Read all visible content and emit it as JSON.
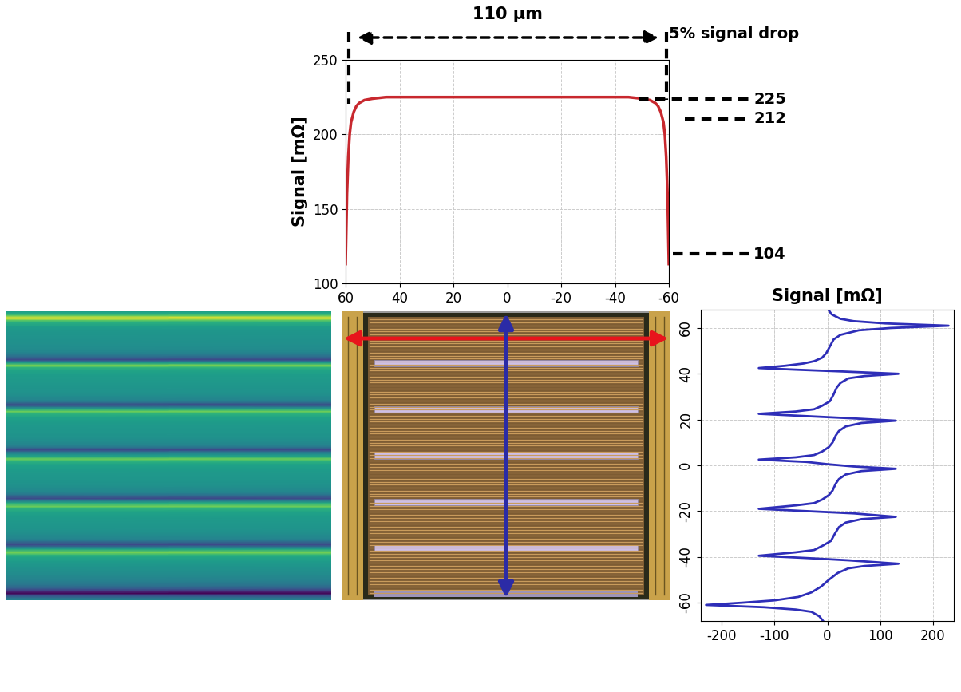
{
  "chart_data": [
    {
      "type": "line",
      "ylabel": "Signal [mΩ]",
      "x": [
        60,
        59.5,
        59,
        58.5,
        58,
        57,
        56,
        55,
        53,
        50,
        45,
        40,
        20,
        0,
        -20,
        -40,
        -45,
        -50,
        -53,
        -55,
        -56,
        -57,
        -58,
        -58.5,
        -59,
        -59.5,
        -60
      ],
      "values": [
        113,
        160,
        185,
        200,
        208,
        215,
        219,
        221,
        223,
        224,
        225,
        225,
        225,
        225,
        225,
        225,
        225,
        224,
        223,
        221,
        219,
        215,
        208,
        200,
        185,
        160,
        113
      ],
      "color": "#c8282e",
      "xlim": [
        60,
        -60
      ],
      "ylim": [
        100,
        250
      ],
      "xticks": [
        60,
        40,
        20,
        0,
        -20,
        -40,
        -60
      ],
      "yticks": [
        100,
        150,
        200,
        250
      ],
      "grid": true,
      "annotations": [
        "110 µm",
        "5% signal drop",
        "225",
        "212",
        "104"
      ]
    },
    {
      "type": "heatmap",
      "color": "viridis",
      "clim": [
        -230,
        230
      ],
      "ylim": [
        -64,
        64
      ],
      "tick_labels": false,
      "y": [
        68,
        66,
        64,
        63,
        62,
        61,
        60,
        59,
        57,
        55,
        52,
        49,
        47,
        45.5,
        44.5,
        43.5,
        42.5,
        41.8,
        41,
        40,
        39,
        38,
        36,
        34,
        31,
        28,
        26,
        24.5,
        23.5,
        22.5,
        21.5,
        20.5,
        19.5,
        18.5,
        17,
        15,
        13,
        10,
        8,
        6,
        4.5,
        3.5,
        2.5,
        1.5,
        0.5,
        -0.5,
        -1.5,
        -2.5,
        -4,
        -6,
        -8,
        -11,
        -13,
        -15,
        -16.5,
        -17.5,
        -19,
        -20,
        -21,
        -22.5,
        -23.5,
        -25,
        -27,
        -30,
        -33,
        -35,
        -37,
        -38,
        -39.5,
        -40.5,
        -41.5,
        -43,
        -44,
        -45,
        -47,
        -50,
        -53,
        -55.5,
        -57.5,
        -59,
        -60,
        -61,
        -62,
        -63,
        -64,
        -66,
        -68
      ],
      "cells": [
        [
          2
        ],
        [
          8
        ],
        [
          25
        ],
        [
          50
        ],
        [
          110
        ],
        [
          230
        ],
        [
          120
        ],
        [
          60
        ],
        [
          25
        ],
        [
          12
        ],
        [
          5
        ],
        [
          -2
        ],
        [
          -10
        ],
        [
          -25
        ],
        [
          -45
        ],
        [
          -80
        ],
        [
          -130
        ],
        [
          -60
        ],
        [
          30
        ],
        [
          135
        ],
        [
          70
        ],
        [
          40
        ],
        [
          25
        ],
        [
          18
        ],
        [
          12
        ],
        [
          5
        ],
        [
          -10
        ],
        [
          -25
        ],
        [
          -60
        ],
        [
          -130
        ],
        [
          -40
        ],
        [
          50
        ],
        [
          130
        ],
        [
          65
        ],
        [
          35
        ],
        [
          22
        ],
        [
          16
        ],
        [
          10
        ],
        [
          3
        ],
        [
          -10
        ],
        [
          -25
        ],
        [
          -60
        ],
        [
          -130
        ],
        [
          -40
        ],
        [
          0
        ],
        [
          50
        ],
        [
          130
        ],
        [
          65
        ],
        [
          35
        ],
        [
          22
        ],
        [
          16
        ],
        [
          10
        ],
        [
          3
        ],
        [
          -10
        ],
        [
          -25
        ],
        [
          -60
        ],
        [
          -130
        ],
        [
          -40
        ],
        [
          50
        ],
        [
          130
        ],
        [
          65
        ],
        [
          35
        ],
        [
          22
        ],
        [
          14
        ],
        [
          7
        ],
        [
          -8
        ],
        [
          -25
        ],
        [
          -60
        ],
        [
          -130
        ],
        [
          -40
        ],
        [
          40
        ],
        [
          135
        ],
        [
          70
        ],
        [
          40
        ],
        [
          20
        ],
        [
          3
        ],
        [
          -12
        ],
        [
          -30
        ],
        [
          -55
        ],
        [
          -100
        ],
        [
          -160
        ],
        [
          -230
        ],
        [
          -120
        ],
        [
          -60
        ],
        [
          -30
        ],
        [
          -15
        ],
        [
          -8
        ]
      ]
    },
    {
      "type": "line",
      "title": "Signal [mΩ]",
      "orientation": "horizontal",
      "color": "#2e2eb8",
      "y": [
        68,
        66,
        64,
        63,
        62,
        61,
        60,
        59,
        57,
        55,
        52,
        49,
        47,
        45.5,
        44.5,
        43.5,
        42.5,
        41.8,
        41,
        40,
        39,
        38,
        36,
        34,
        31,
        28,
        26,
        24.5,
        23.5,
        22.5,
        21.5,
        20.5,
        19.5,
        18.5,
        17,
        15,
        13,
        10,
        8,
        6,
        4.5,
        3.5,
        2.5,
        1.5,
        0.5,
        -0.5,
        -1.5,
        -2.5,
        -4,
        -6,
        -8,
        -11,
        -13,
        -15,
        -16.5,
        -17.5,
        -19,
        -20,
        -21,
        -22.5,
        -23.5,
        -25,
        -27,
        -30,
        -33,
        -35,
        -37,
        -38,
        -39.5,
        -40.5,
        -41.5,
        -43,
        -44,
        -45,
        -47,
        -50,
        -53,
        -55.5,
        -57.5,
        -59,
        -60,
        -61,
        -62,
        -63,
        -64,
        -66,
        -68
      ],
      "values": [
        2,
        8,
        25,
        50,
        110,
        230,
        120,
        60,
        25,
        12,
        5,
        -2,
        -10,
        -25,
        -45,
        -80,
        -130,
        -60,
        30,
        135,
        70,
        40,
        25,
        18,
        12,
        5,
        -10,
        -25,
        -60,
        -130,
        -40,
        50,
        130,
        65,
        35,
        22,
        16,
        10,
        3,
        -10,
        -25,
        -60,
        -130,
        -40,
        0,
        50,
        130,
        65,
        35,
        22,
        16,
        10,
        3,
        -10,
        -25,
        -60,
        -130,
        -40,
        50,
        130,
        65,
        35,
        22,
        14,
        7,
        -8,
        -25,
        -60,
        -130,
        -40,
        40,
        135,
        70,
        40,
        20,
        3,
        -12,
        -30,
        -55,
        -100,
        -160,
        -230,
        -120,
        -60,
        -30,
        -15,
        -8
      ],
      "xlim": [
        -240,
        240
      ],
      "ylim": [
        -68,
        68
      ],
      "xticks": [
        -200,
        -100,
        0,
        100,
        200
      ],
      "yticks": [
        -60,
        -40,
        -20,
        0,
        20,
        40,
        60
      ],
      "grid": true
    }
  ]
}
